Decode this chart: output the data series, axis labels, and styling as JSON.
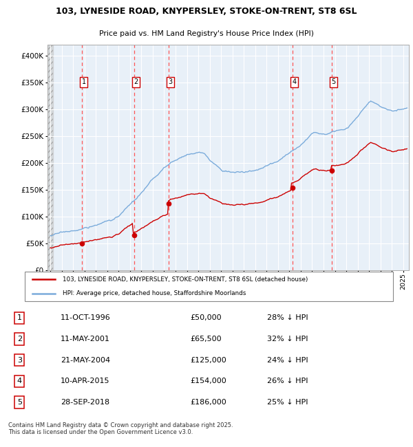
{
  "title_line1": "103, LYNESIDE ROAD, KNYPERSLEY, STOKE-ON-TRENT, ST8 6SL",
  "title_line2": "Price paid vs. HM Land Registry's House Price Index (HPI)",
  "legend_red": "103, LYNESIDE ROAD, KNYPERSLEY, STOKE-ON-TRENT, ST8 6SL (detached house)",
  "legend_blue": "HPI: Average price, detached house, Staffordshire Moorlands",
  "footer": "Contains HM Land Registry data © Crown copyright and database right 2025.\nThis data is licensed under the Open Government Licence v3.0.",
  "sale_events": [
    {
      "num": 1,
      "date": "11-OCT-1996",
      "price": 50000,
      "pct": "28%",
      "x_year": 1996.78
    },
    {
      "num": 2,
      "date": "11-MAY-2001",
      "price": 65500,
      "pct": "32%",
      "x_year": 2001.36
    },
    {
      "num": 3,
      "date": "21-MAY-2004",
      "price": 125000,
      "pct": "24%",
      "x_year": 2004.39
    },
    {
      "num": 4,
      "date": "10-APR-2015",
      "price": 154000,
      "pct": "26%",
      "x_year": 2015.27
    },
    {
      "num": 5,
      "date": "28-SEP-2018",
      "price": 186000,
      "pct": "25%",
      "x_year": 2018.74
    }
  ],
  "red_color": "#cc0000",
  "blue_color": "#7aabdb",
  "bg_color": "#ffffff",
  "plot_bg": "#e8f0f8",
  "grid_color": "#ffffff",
  "dashed_color": "#ff5555",
  "ylim": [
    0,
    420000
  ],
  "xlim_start": 1993.75,
  "xlim_end": 2025.5,
  "yticks": [
    0,
    50000,
    100000,
    150000,
    200000,
    250000,
    300000,
    350000,
    400000
  ],
  "ytick_labels": [
    "£0",
    "£50K",
    "£100K",
    "£150K",
    "£200K",
    "£250K",
    "£300K",
    "£350K",
    "£400K"
  ]
}
